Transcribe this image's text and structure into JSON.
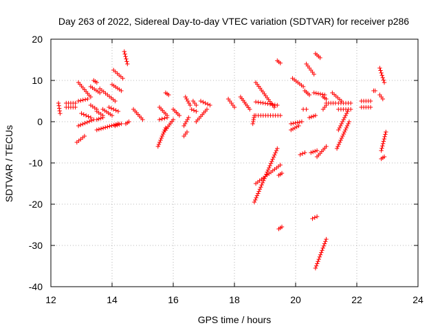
{
  "chart_data": {
    "type": "scatter",
    "title": "Day 263 of 2022, Sidereal Day-to-day VTEC variation (SDTVAR) for receiver p286",
    "xlabel": "GPS time / hours",
    "ylabel": "SDTVAR / TECUs",
    "xlim": [
      12,
      24
    ],
    "ylim": [
      -40,
      20
    ],
    "xticks": [
      12,
      14,
      16,
      18,
      20,
      22,
      24
    ],
    "yticks": [
      -40,
      -30,
      -20,
      -10,
      0,
      10,
      20
    ],
    "grid": true,
    "marker": "+",
    "color": "#ff0000",
    "segments": [
      {
        "x": [
          12.25,
          12.3
        ],
        "y": [
          4.5,
          2.0
        ]
      },
      {
        "x": [
          12.5,
          12.8
        ],
        "y": [
          4.5,
          4.5
        ]
      },
      {
        "x": [
          12.5,
          12.8
        ],
        "y": [
          3.5,
          3.5
        ]
      },
      {
        "x": [
          12.85,
          13.1
        ],
        "y": [
          -5.0,
          -3.5
        ]
      },
      {
        "x": [
          12.9,
          13.3
        ],
        "y": [
          9.5,
          6.0
        ]
      },
      {
        "x": [
          12.9,
          13.2
        ],
        "y": [
          5.0,
          5.5
        ]
      },
      {
        "x": [
          12.9,
          13.4
        ],
        "y": [
          -1.0,
          0.5
        ]
      },
      {
        "x": [
          13.0,
          13.3
        ],
        "y": [
          2.0,
          1.0
        ]
      },
      {
        "x": [
          13.3,
          13.6
        ],
        "y": [
          8.5,
          7.0
        ]
      },
      {
        "x": [
          13.3,
          13.5
        ],
        "y": [
          4.0,
          3.0
        ]
      },
      {
        "x": [
          13.4,
          13.5
        ],
        "y": [
          10.0,
          9.5
        ]
      },
      {
        "x": [
          13.5,
          13.7
        ],
        "y": [
          2.5,
          1.5
        ]
      },
      {
        "x": [
          13.5,
          13.7
        ],
        "y": [
          0.5,
          1.0
        ]
      },
      {
        "x": [
          13.6,
          14.1
        ],
        "y": [
          8.0,
          5.0
        ]
      },
      {
        "x": [
          13.5,
          14.2
        ],
        "y": [
          -2.0,
          -0.5
        ]
      },
      {
        "x": [
          13.7,
          14.0
        ],
        "y": [
          3.0,
          1.5
        ]
      },
      {
        "x": [
          13.9,
          14.2
        ],
        "y": [
          3.5,
          2.5
        ]
      },
      {
        "x": [
          14.05,
          14.35
        ],
        "y": [
          12.5,
          10.5
        ]
      },
      {
        "x": [
          14.0,
          14.3
        ],
        "y": [
          9.0,
          7.5
        ]
      },
      {
        "x": [
          14.1,
          14.3
        ],
        "y": [
          -1.0,
          -0.5
        ]
      },
      {
        "x": [
          14.4,
          14.5
        ],
        "y": [
          17.0,
          14.0
        ]
      },
      {
        "x": [
          14.45,
          14.55
        ],
        "y": [
          -0.5,
          0.0
        ]
      },
      {
        "x": [
          14.7,
          15.0
        ],
        "y": [
          3.0,
          0.5
        ]
      },
      {
        "x": [
          15.5,
          15.75
        ],
        "y": [
          -6.0,
          -1.5
        ]
      },
      {
        "x": [
          15.55,
          15.8
        ],
        "y": [
          3.5,
          1.5
        ]
      },
      {
        "x": [
          15.55,
          15.8
        ],
        "y": [
          0.5,
          1.0
        ]
      },
      {
        "x": [
          15.7,
          16.0
        ],
        "y": [
          -2.5,
          0.5
        ]
      },
      {
        "x": [
          15.75,
          15.85
        ],
        "y": [
          7.0,
          6.5
        ]
      },
      {
        "x": [
          16.0,
          16.2
        ],
        "y": [
          3.0,
          1.5
        ]
      },
      {
        "x": [
          16.35,
          16.45
        ],
        "y": [
          -3.5,
          -2.5
        ]
      },
      {
        "x": [
          16.35,
          16.5
        ],
        "y": [
          -1.0,
          1.0
        ]
      },
      {
        "x": [
          16.4,
          16.55
        ],
        "y": [
          6.0,
          4.0
        ]
      },
      {
        "x": [
          16.6,
          16.75
        ],
        "y": [
          3.0,
          2.5
        ]
      },
      {
        "x": [
          16.65,
          16.75
        ],
        "y": [
          5.0,
          4.0
        ]
      },
      {
        "x": [
          16.75,
          17.1
        ],
        "y": [
          0.0,
          3.0
        ]
      },
      {
        "x": [
          16.9,
          17.2
        ],
        "y": [
          5.0,
          4.0
        ]
      },
      {
        "x": [
          17.8,
          18.0
        ],
        "y": [
          5.5,
          3.5
        ]
      },
      {
        "x": [
          18.2,
          18.5
        ],
        "y": [
          6.0,
          3.0
        ]
      },
      {
        "x": [
          18.6,
          18.65
        ],
        "y": [
          -0.5,
          1.5
        ]
      },
      {
        "x": [
          18.65,
          19.4
        ],
        "y": [
          -19.5,
          -6.5
        ]
      },
      {
        "x": [
          18.7,
          19.5
        ],
        "y": [
          -15.0,
          -10.5
        ]
      },
      {
        "x": [
          18.7,
          19.3
        ],
        "y": [
          9.5,
          3.5
        ]
      },
      {
        "x": [
          18.7,
          19.4
        ],
        "y": [
          4.8,
          4.0
        ]
      },
      {
        "x": [
          18.7,
          19.5
        ],
        "y": [
          1.5,
          1.5
        ]
      },
      {
        "x": [
          19.4,
          19.5
        ],
        "y": [
          14.8,
          14.2
        ]
      },
      {
        "x": [
          19.45,
          19.55
        ],
        "y": [
          -13.0,
          -12.5
        ]
      },
      {
        "x": [
          19.45,
          19.55
        ],
        "y": [
          -26.0,
          -25.5
        ]
      },
      {
        "x": [
          19.85,
          20.1
        ],
        "y": [
          -2.0,
          -1.0
        ]
      },
      {
        "x": [
          19.85,
          20.2
        ],
        "y": [
          -0.5,
          0.0
        ]
      },
      {
        "x": [
          19.9,
          20.25
        ],
        "y": [
          10.5,
          8.5
        ]
      },
      {
        "x": [
          20.15,
          20.3
        ],
        "y": [
          -8.0,
          -7.5
        ]
      },
      {
        "x": [
          20.25,
          20.35
        ],
        "y": [
          3.0,
          3.0
        ]
      },
      {
        "x": [
          20.3,
          20.45
        ],
        "y": [
          7.5,
          6.5
        ]
      },
      {
        "x": [
          20.35,
          20.6
        ],
        "y": [
          14.0,
          11.5
        ]
      },
      {
        "x": [
          20.45,
          20.65
        ],
        "y": [
          1.0,
          1.5
        ]
      },
      {
        "x": [
          20.5,
          20.7
        ],
        "y": [
          -7.5,
          -7.0
        ]
      },
      {
        "x": [
          20.55,
          20.7
        ],
        "y": [
          -23.5,
          -23.0
        ]
      },
      {
        "x": [
          20.6,
          20.95
        ],
        "y": [
          7.0,
          6.5
        ]
      },
      {
        "x": [
          20.65,
          20.8
        ],
        "y": [
          16.5,
          15.5
        ]
      },
      {
        "x": [
          20.65,
          21.0
        ],
        "y": [
          -35.5,
          -28.5
        ]
      },
      {
        "x": [
          20.7,
          21.0
        ],
        "y": [
          -8.5,
          -6.0
        ]
      },
      {
        "x": [
          20.9,
          21.0
        ],
        "y": [
          3.0,
          4.0
        ]
      },
      {
        "x": [
          20.9,
          21.0
        ],
        "y": [
          6.0,
          5.5
        ]
      },
      {
        "x": [
          21.0,
          21.3
        ],
        "y": [
          4.5,
          4.5
        ]
      },
      {
        "x": [
          21.2,
          21.5
        ],
        "y": [
          7.0,
          5.0
        ]
      },
      {
        "x": [
          21.35,
          21.75
        ],
        "y": [
          -6.5,
          0.0
        ]
      },
      {
        "x": [
          21.4,
          21.7
        ],
        "y": [
          -2.0,
          2.5
        ]
      },
      {
        "x": [
          21.4,
          21.8
        ],
        "y": [
          4.5,
          4.5
        ]
      },
      {
        "x": [
          21.4,
          21.8
        ],
        "y": [
          3.0,
          3.0
        ]
      },
      {
        "x": [
          22.15,
          22.45
        ],
        "y": [
          5.0,
          5.0
        ]
      },
      {
        "x": [
          22.15,
          22.45
        ],
        "y": [
          3.5,
          3.5
        ]
      },
      {
        "x": [
          22.55,
          22.6
        ],
        "y": [
          7.5,
          7.5
        ]
      },
      {
        "x": [
          22.75,
          22.9
        ],
        "y": [
          13.0,
          9.5
        ]
      },
      {
        "x": [
          22.75,
          22.85
        ],
        "y": [
          6.5,
          5.5
        ]
      },
      {
        "x": [
          22.8,
          22.9
        ],
        "y": [
          -9.0,
          -8.5
        ]
      },
      {
        "x": [
          22.8,
          22.95
        ],
        "y": [
          -7.0,
          -2.5
        ]
      }
    ]
  }
}
